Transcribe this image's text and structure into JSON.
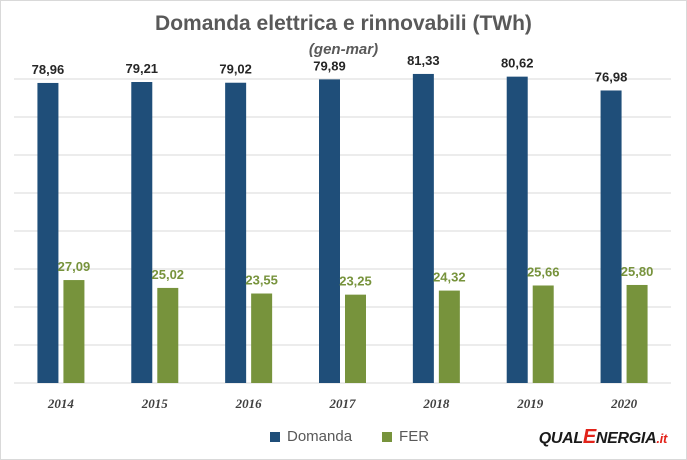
{
  "chart_data": {
    "type": "bar",
    "title": "Domanda elettrica e rinnovabili (TWh)",
    "subtitle": "(gen-mar)",
    "categories": [
      "2014",
      "2015",
      "2016",
      "2017",
      "2018",
      "2019",
      "2020"
    ],
    "series": [
      {
        "name": "Domanda",
        "color": "#1f4e79",
        "label_color": "#262626",
        "values": [
          78.96,
          79.21,
          79.02,
          79.89,
          81.33,
          80.62,
          76.98
        ],
        "labels": [
          "78,96",
          "79,21",
          "79,02",
          "79,89",
          "81,33",
          "80,62",
          "76,98"
        ]
      },
      {
        "name": "FER",
        "color": "#77933c",
        "label_color": "#77933c",
        "values": [
          27.09,
          25.02,
          23.55,
          23.25,
          24.32,
          25.66,
          25.8
        ],
        "labels": [
          "27,09",
          "25,02",
          "23,55",
          "23,25",
          "24,32",
          "25,66",
          "25,80"
        ]
      }
    ],
    "ylim": [
      0,
      80
    ],
    "grid": true,
    "legend_position": "bottom"
  },
  "logo": {
    "part1": "QUAL",
    "part2": "E",
    "part3": "NERGIA",
    "part4": ".it"
  }
}
